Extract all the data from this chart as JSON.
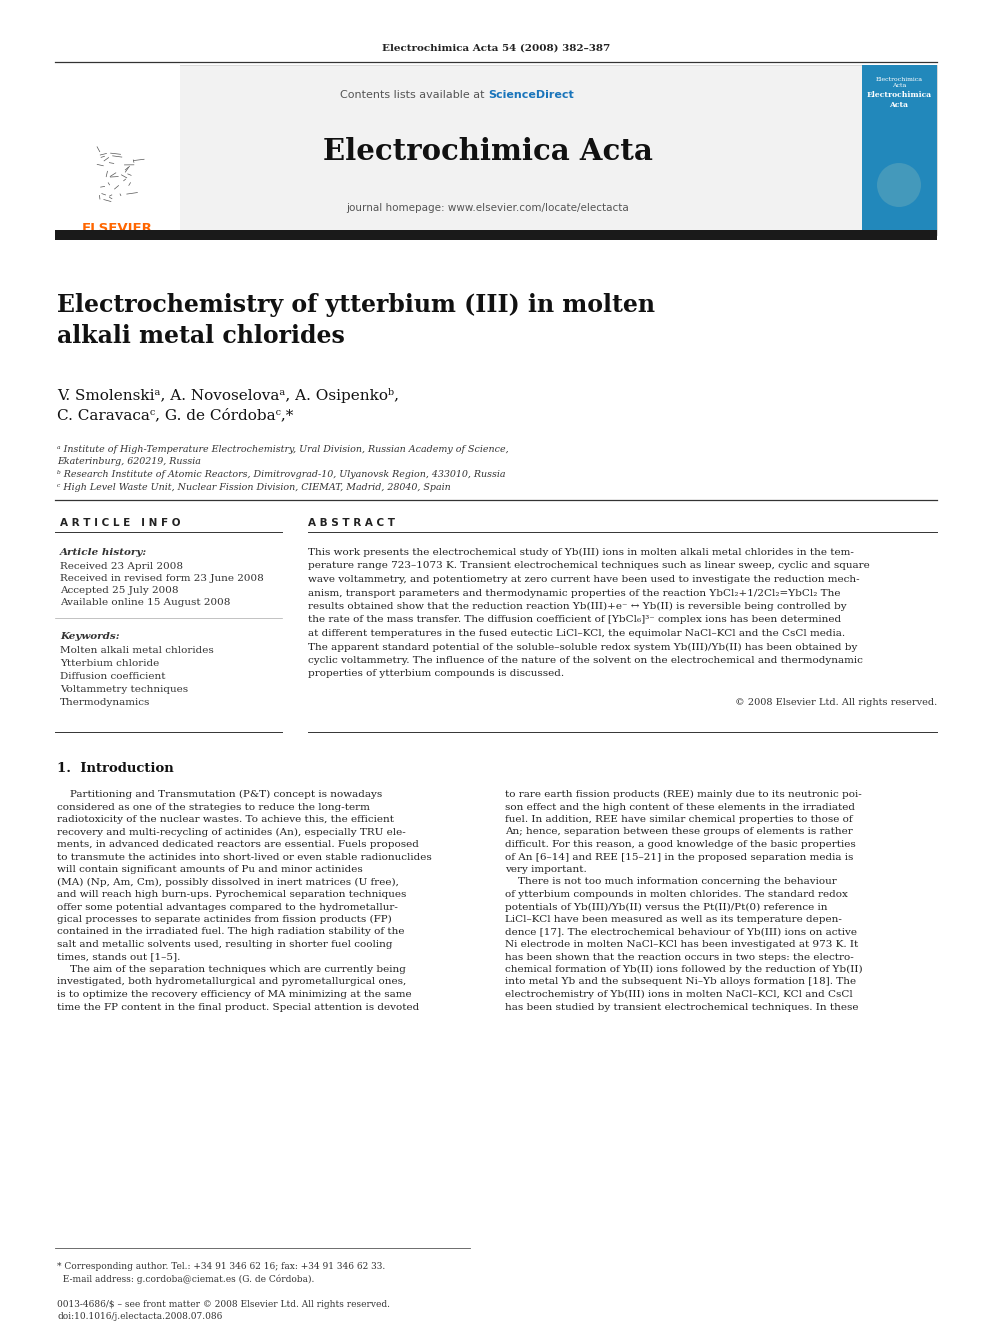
{
  "page_title": "Electrochimica Acta 54 (2008) 382–387",
  "journal_name": "Electrochimica Acta",
  "contents_text": "Contents lists available at ScienceDirect",
  "sciencedirect_text": "ScienceDirect",
  "journal_homepage": "journal homepage: www.elsevier.com/locate/electacta",
  "article_title": "Electrochemistry of ytterbium (III) in molten\nalkali metal chlorides",
  "authors_line1": "V. Smolenskiᵃ, A. Novoselovaᵃ, A. Osipenkoᵇ,",
  "authors_line2": "C. Caravacaᶜ, G. de Córdobaᶜ,*",
  "affil_a": "ᵃ Institute of High-Temperature Electrochemistry, Ural Division, Russian Academy of Science,\nEkaterinburg, 620219, Russia",
  "affil_b": "ᵇ Research Institute of Atomic Reactors, Dimitrovgrad-10, Ulyanovsk Region, 433010, Russia",
  "affil_c": "ᶜ High Level Waste Unit, Nuclear Fission Division, CIEMAT, Madrid, 28040, Spain",
  "article_info_header": "A R T I C L E   I N F O",
  "abstract_header": "A B S T R A C T",
  "article_history_label": "Article history:",
  "received": "Received 23 April 2008",
  "received_revised": "Received in revised form 23 June 2008",
  "accepted": "Accepted 25 July 2008",
  "available_online": "Available online 15 August 2008",
  "keywords_label": "Keywords:",
  "keywords": [
    "Molten alkali metal chlorides",
    "Ytterbium chloride",
    "Diffusion coefficient",
    "Voltammetry techniques",
    "Thermodynamics"
  ],
  "copyright": "© 2008 Elsevier Ltd. All rights reserved.",
  "section1_header": "1.  Introduction",
  "footnote_line1": "* Corresponding author. Tel.: +34 91 346 62 16; fax: +34 91 346 62 33.",
  "footnote_line2": "  E-mail address: g.cordoba@ciemat.es (G. de Córdoba).",
  "issn_note_line1": "0013-4686/$ – see front matter © 2008 Elsevier Ltd. All rights reserved.",
  "issn_note_line2": "doi:10.1016/j.electacta.2008.07.086",
  "bg_color": "#ffffff",
  "dark_bar_color": "#1a1a1a",
  "elsevier_color": "#ff6600",
  "sciencedirect_color": "#1a75bb"
}
